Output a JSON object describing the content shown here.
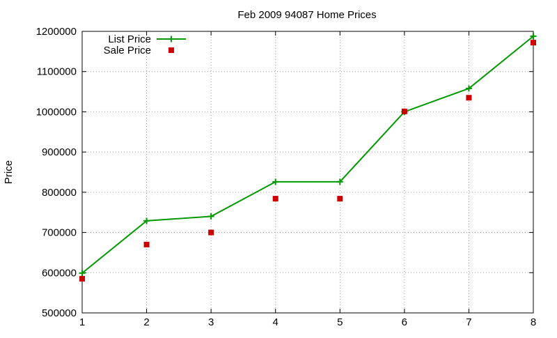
{
  "chart_data": {
    "type": "line",
    "title": "Feb 2009 94087 Home Prices",
    "xlabel": "",
    "ylabel": "Price",
    "xlim": [
      1,
      8
    ],
    "ylim": [
      500000,
      1200000
    ],
    "x_ticks": [
      1,
      2,
      3,
      4,
      5,
      6,
      7,
      8
    ],
    "y_ticks": [
      500000,
      600000,
      700000,
      800000,
      900000,
      1000000,
      1100000,
      1200000
    ],
    "grid": true,
    "legend_position": "top-left",
    "x": [
      1,
      2,
      3,
      4,
      5,
      6,
      7,
      8
    ],
    "series": [
      {
        "name": "List Price",
        "style": "line-with-plus-markers",
        "color": "#009900",
        "values": [
          599000,
          729000,
          740000,
          826000,
          826000,
          1000000,
          1058000,
          1188000
        ]
      },
      {
        "name": "Sale Price",
        "style": "square-markers",
        "color": "#cc0000",
        "values": [
          585000,
          670000,
          700000,
          784000,
          784000,
          1001000,
          1035000,
          1172000
        ]
      }
    ]
  }
}
